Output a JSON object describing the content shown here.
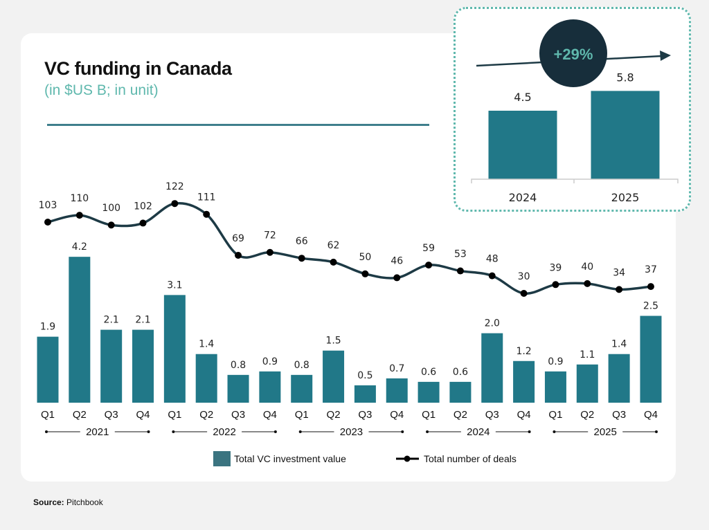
{
  "title": "VC funding in Canada",
  "subtitle": "(in $US B; in unit)",
  "source_label": "Source:",
  "source_value": "Pitchbook",
  "colors": {
    "bar": "#217888",
    "line": "#1d3a45",
    "accent": "#5fb8ad",
    "badge": "#172e3b"
  },
  "chart_data": [
    {
      "type": "bar+line",
      "categories": [
        "Q1",
        "Q2",
        "Q3",
        "Q4",
        "Q1",
        "Q2",
        "Q3",
        "Q4",
        "Q1",
        "Q2",
        "Q3",
        "Q4",
        "Q1",
        "Q2",
        "Q3",
        "Q4",
        "Q1",
        "Q2",
        "Q3",
        "Q4"
      ],
      "years": [
        "2021",
        "2022",
        "2023",
        "2024",
        "2025"
      ],
      "series": [
        {
          "name": "Total VC investment value",
          "type": "bar",
          "values": [
            1.9,
            4.2,
            2.1,
            2.1,
            3.1,
            1.4,
            0.8,
            0.9,
            0.8,
            1.5,
            0.5,
            0.7,
            0.6,
            0.6,
            2.0,
            1.2,
            0.9,
            1.1,
            1.4,
            2.5
          ],
          "labels": [
            "1.9",
            "4.2",
            "2.1",
            "2.1",
            "3.1",
            "1.4",
            "0.8",
            "0.9",
            "0.8",
            "1.5",
            "0.5",
            "0.7",
            "0.6",
            "0.6",
            "2.0",
            "1.2",
            "0.9",
            "1.1",
            "1.4",
            "2.5"
          ]
        },
        {
          "name": "Total number of deals",
          "type": "line",
          "values": [
            103,
            110,
            100,
            102,
            122,
            111,
            69,
            72,
            66,
            62,
            50,
            46,
            59,
            53,
            48,
            30,
            39,
            40,
            34,
            37
          ]
        }
      ],
      "legend": "bottom",
      "grid": false
    },
    {
      "type": "bar",
      "categories": [
        "2024",
        "2025"
      ],
      "values": [
        4.5,
        5.8
      ],
      "labels": [
        "4.5",
        "5.8"
      ],
      "annotation": "+29%"
    }
  ]
}
